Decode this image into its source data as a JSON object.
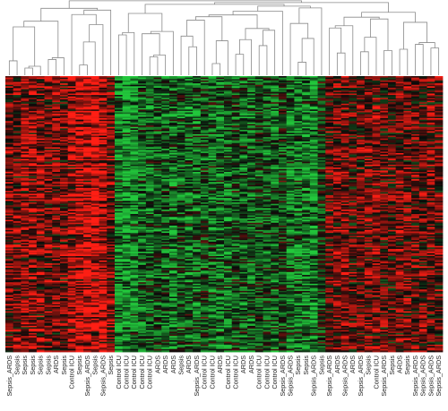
{
  "chart_data": {
    "type": "heatmap",
    "title": "",
    "xlabel": "",
    "ylabel": "",
    "dendrogram": "top",
    "color_scale": {
      "low": "#22c83c",
      "mid": "#0a0a0a",
      "high": "#ff1e14"
    },
    "colors": {
      "dendrogram": "#8a8a8a",
      "label": "#222222",
      "background": "#ffffff"
    },
    "row_count": 190,
    "columns": [
      "Sepsis_ARDS",
      "Sepsis",
      "Sepsis",
      "Sepsis",
      "Sepsis",
      "Sepsis",
      "ARDS",
      "Sepsis",
      "Control ICU",
      "Sepsis",
      "Sepsis_ARDS",
      "Sepsis",
      "Sepsis_ARDS",
      "Sepsis",
      "Control ICU",
      "Control ICU",
      "Control ICU",
      "Control ICU",
      "Control ICU",
      "ARDS",
      "ARDS",
      "ARDS",
      "Sepsis",
      "ARDS",
      "Sepsis_ARDS",
      "Control ICU",
      "Control ICU",
      "ARDS",
      "Control ICU",
      "Control ICU",
      "ARDS",
      "ARDS",
      "Control ICU",
      "Control ICU",
      "Control ICU",
      "Sepsis_ARDS",
      "Sepsis_ARDS",
      "Sepsis",
      "Sepsis",
      "Sepsis_ARDS",
      "Sepsis",
      "Sepsis_ARDS",
      "ARDS",
      "Sepsis_ARDS",
      "ARDS",
      "Sepsis_ARDS",
      "Sepsis",
      "Control ICU",
      "Sepsis_ARDS",
      "Sepsis",
      "ARDS",
      "Sepsis",
      "Sepsis_ARDS",
      "Sepsis_ARDS",
      "Sepsis_ARDS",
      "Sepsis_ARDS"
    ],
    "column_profile": [
      0.5,
      0.45,
      0.55,
      0.6,
      0.55,
      0.45,
      0.5,
      0.45,
      0.7,
      0.95,
      0.9,
      1.0,
      0.85,
      0.45,
      -0.75,
      -0.85,
      -0.7,
      -0.55,
      -0.5,
      -0.45,
      -0.5,
      -0.6,
      -0.45,
      -0.55,
      -0.5,
      -0.35,
      -0.55,
      -0.6,
      -0.5,
      -0.4,
      -0.45,
      -0.5,
      -0.35,
      -0.4,
      -0.5,
      -0.3,
      -0.6,
      -0.65,
      -0.7,
      -0.75,
      -0.2,
      0.35,
      0.45,
      0.5,
      0.3,
      0.4,
      0.45,
      0.5,
      0.35,
      0.3,
      0.5,
      0.45,
      0.4,
      0.35,
      0.45,
      0.4
    ]
  }
}
